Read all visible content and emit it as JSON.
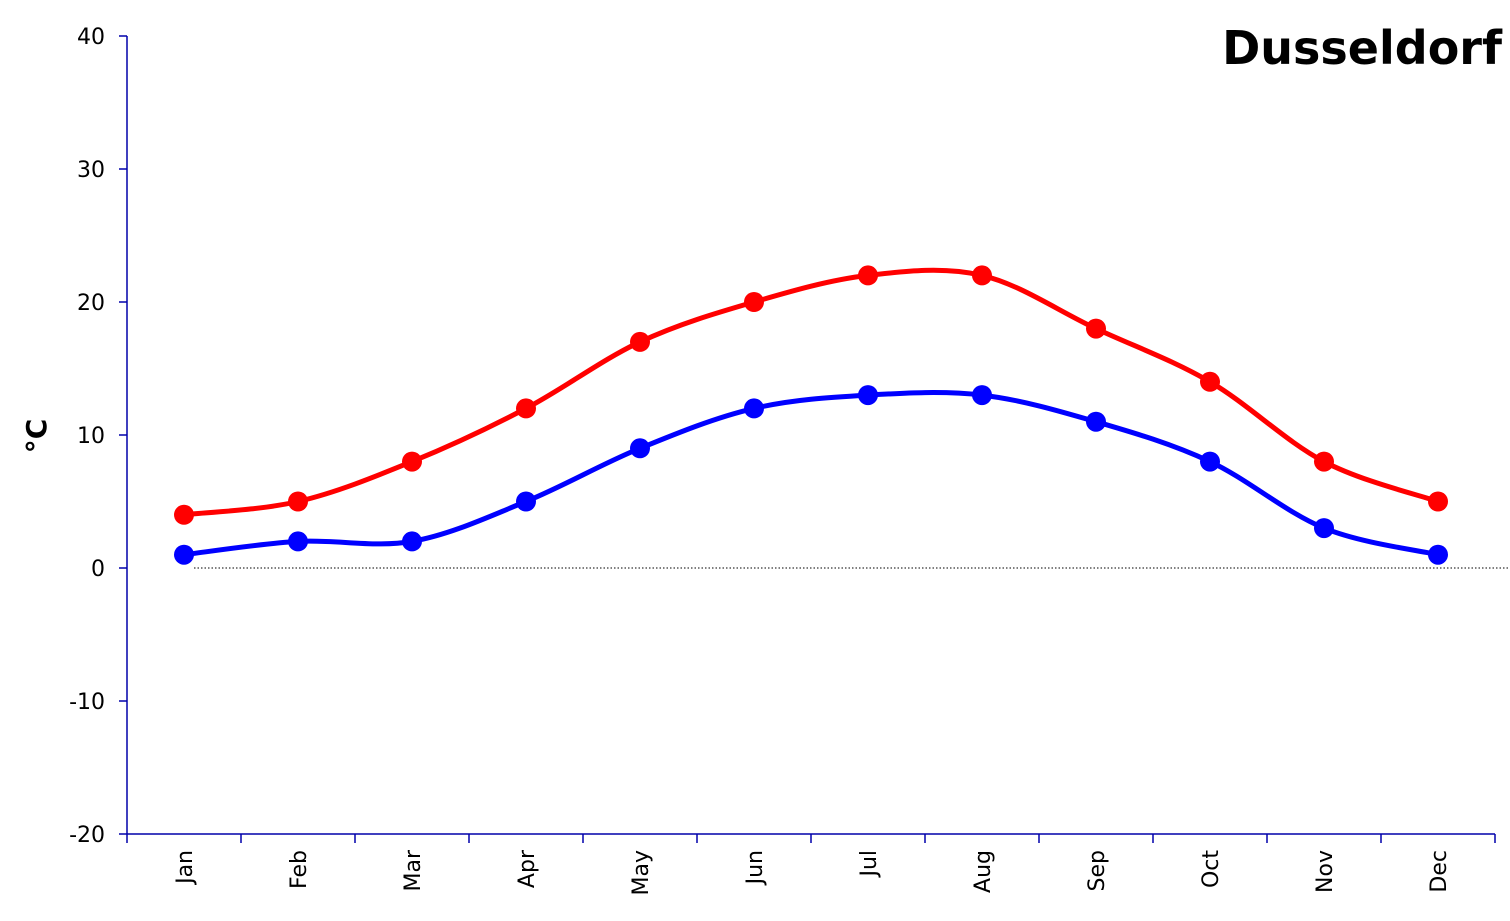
{
  "chart_data": {
    "type": "line",
    "title": "Dusseldorf",
    "xlabel": "",
    "ylabel": "°C",
    "categories": [
      "Jan",
      "Feb",
      "Mar",
      "Apr",
      "May",
      "Jun",
      "Jul",
      "Aug",
      "Sep",
      "Oct",
      "Nov",
      "Dec"
    ],
    "ylim": [
      -20,
      40
    ],
    "yticks": [
      "40",
      "30",
      "20",
      "10",
      "0",
      "-10",
      "-20"
    ],
    "ytick_values": [
      40,
      30,
      20,
      10,
      0,
      -10,
      -20
    ],
    "grid": false,
    "zero_line": true,
    "smooth": true,
    "legend": "none",
    "series": [
      {
        "values": [
          4,
          5,
          8,
          12,
          17,
          20,
          22,
          22,
          18,
          14,
          8,
          5
        ],
        "color": "#ff0000"
      },
      {
        "values": [
          1,
          2,
          2,
          5,
          9,
          12,
          13,
          13,
          11,
          8,
          3,
          1
        ],
        "color": "#0000ff"
      }
    ],
    "axis_color": "#0000aa"
  }
}
